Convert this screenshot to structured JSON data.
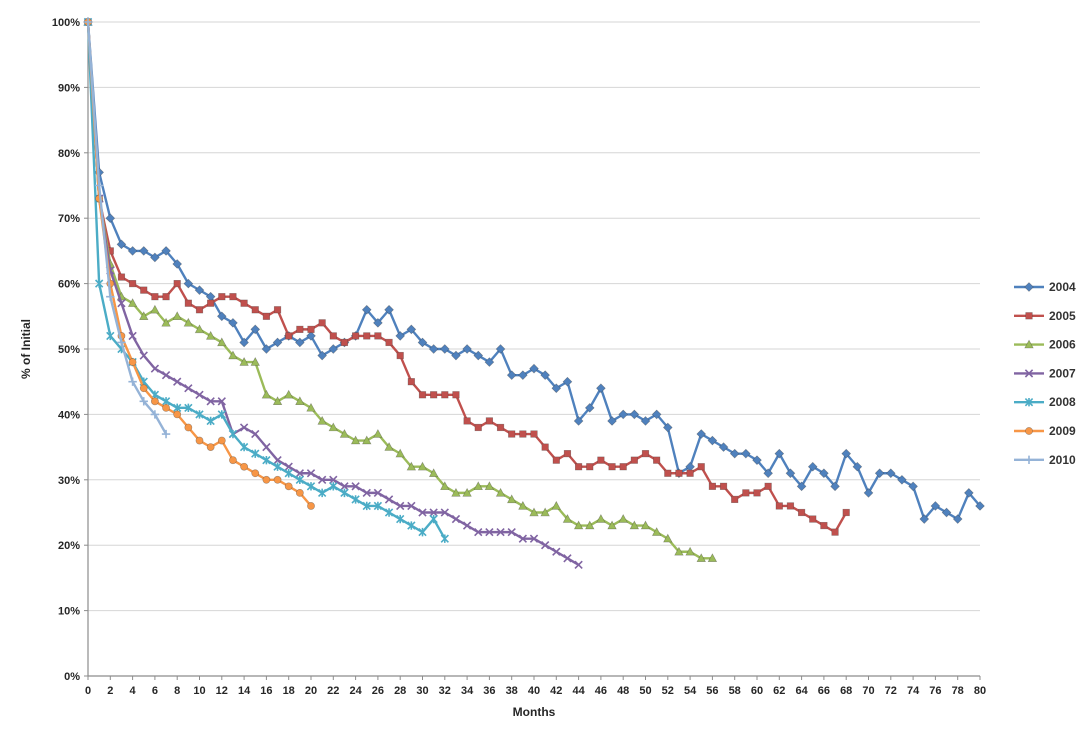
{
  "chart_data": {
    "type": "line",
    "title": "",
    "xlabel": "Months",
    "ylabel": "% of Initial",
    "xlim": [
      0,
      80
    ],
    "ylim": [
      0,
      100
    ],
    "grid": "horizontal",
    "legend_position": "right",
    "axis_color": "#8C8C8C",
    "grid_color": "#D6D6D6",
    "x_ticks": [
      0,
      2,
      4,
      6,
      8,
      10,
      12,
      14,
      16,
      18,
      20,
      22,
      24,
      26,
      28,
      30,
      32,
      34,
      36,
      38,
      40,
      42,
      44,
      46,
      48,
      50,
      52,
      54,
      56,
      58,
      60,
      62,
      64,
      66,
      68,
      70,
      72,
      74,
      76,
      78,
      80
    ],
    "y_ticks": [
      0,
      10,
      20,
      30,
      40,
      50,
      60,
      70,
      80,
      90,
      100
    ],
    "y_tick_labels": [
      "0%",
      "10%",
      "20%",
      "30%",
      "40%",
      "50%",
      "60%",
      "70%",
      "80%",
      "90%",
      "100%"
    ],
    "series": [
      {
        "name": "2004",
        "color": "#4F81BD",
        "marker": "diamond",
        "values": [
          100,
          77,
          70,
          66,
          65,
          65,
          64,
          65,
          63,
          60,
          59,
          58,
          55,
          54,
          51,
          53,
          50,
          51,
          52,
          51,
          52,
          49,
          50,
          51,
          52,
          56,
          54,
          56,
          52,
          53,
          51,
          50,
          50,
          49,
          50,
          49,
          48,
          50,
          46,
          46,
          47,
          46,
          44,
          45,
          39,
          41,
          44,
          39,
          40,
          40,
          39,
          40,
          38,
          31,
          32,
          37,
          36,
          35,
          34,
          34,
          33,
          31,
          34,
          31,
          29,
          32,
          31,
          29,
          34,
          32,
          28,
          31,
          31,
          30,
          29,
          24,
          26,
          25,
          24,
          28,
          26
        ]
      },
      {
        "name": "2005",
        "color": "#C0504D",
        "marker": "square",
        "values": [
          100,
          73,
          65,
          61,
          60,
          59,
          58,
          58,
          60,
          57,
          56,
          57,
          58,
          58,
          57,
          56,
          55,
          56,
          52,
          53,
          53,
          54,
          52,
          51,
          52,
          52,
          52,
          51,
          49,
          45,
          43,
          43,
          43,
          43,
          39,
          38,
          39,
          38,
          37,
          37,
          37,
          35,
          33,
          34,
          32,
          32,
          33,
          32,
          32,
          33,
          34,
          33,
          31,
          31,
          31,
          32,
          29,
          29,
          27,
          28,
          28,
          29,
          26,
          26,
          25,
          24,
          23,
          22,
          25
        ]
      },
      {
        "name": "2006",
        "color": "#9BBB59",
        "marker": "triangle",
        "values": [
          100,
          73,
          63,
          58,
          57,
          55,
          56,
          54,
          55,
          54,
          53,
          52,
          51,
          49,
          48,
          48,
          43,
          42,
          43,
          42,
          41,
          39,
          38,
          37,
          36,
          36,
          37,
          35,
          34,
          32,
          32,
          31,
          29,
          28,
          28,
          29,
          29,
          28,
          27,
          26,
          25,
          25,
          26,
          24,
          23,
          23,
          24,
          23,
          24,
          23,
          23,
          22,
          21,
          19,
          19,
          18,
          18
        ]
      },
      {
        "name": "2007",
        "color": "#8064A2",
        "marker": "x",
        "values": [
          100,
          73,
          62,
          57,
          52,
          49,
          47,
          46,
          45,
          44,
          43,
          42,
          42,
          37,
          38,
          37,
          35,
          33,
          32,
          31,
          31,
          30,
          30,
          29,
          29,
          28,
          28,
          27,
          26,
          26,
          25,
          25,
          25,
          24,
          23,
          22,
          22,
          22,
          22,
          21,
          21,
          20,
          19,
          18,
          17
        ]
      },
      {
        "name": "2008",
        "color": "#4BACC6",
        "marker": "asterisk",
        "values": [
          100,
          60,
          52,
          50,
          48,
          45,
          43,
          42,
          41,
          41,
          40,
          39,
          40,
          37,
          35,
          34,
          33,
          32,
          31,
          30,
          29,
          28,
          29,
          28,
          27,
          26,
          26,
          25,
          24,
          23,
          22,
          24,
          21
        ]
      },
      {
        "name": "2009",
        "color": "#F79646",
        "marker": "circle",
        "values": [
          100,
          73,
          60,
          52,
          48,
          44,
          42,
          41,
          40,
          38,
          36,
          35,
          36,
          33,
          32,
          31,
          30,
          30,
          29,
          28,
          26
        ]
      },
      {
        "name": "2010",
        "color": "#95B3D7",
        "marker": "plus",
        "values": [
          100,
          75,
          58,
          51,
          45,
          42,
          40,
          37
        ]
      }
    ]
  }
}
